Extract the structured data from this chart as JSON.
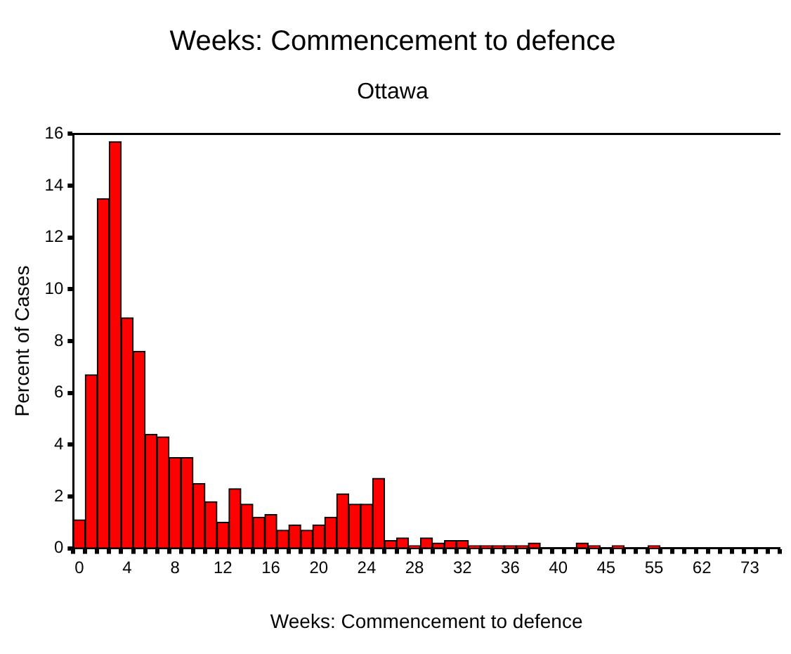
{
  "chart_data": {
    "type": "bar",
    "title": "Weeks: Commencement to defence",
    "subtitle": "Ottawa",
    "xlabel": "Weeks: Commencement to defence",
    "ylabel": "Percent of Cases",
    "categories": [
      "0",
      null,
      null,
      null,
      "4",
      null,
      null,
      null,
      "8",
      null,
      null,
      null,
      "12",
      null,
      null,
      null,
      "16",
      null,
      null,
      null,
      "20",
      null,
      null,
      null,
      "24",
      null,
      null,
      null,
      "28",
      null,
      null,
      null,
      "32",
      null,
      null,
      null,
      "36",
      null,
      null,
      null,
      "40",
      null,
      null,
      null,
      "45",
      null,
      null,
      null,
      "55",
      null,
      null,
      null,
      "62",
      null,
      null,
      null,
      "73",
      null,
      null
    ],
    "values": [
      1.1,
      6.7,
      13.5,
      15.7,
      8.9,
      7.6,
      4.4,
      4.3,
      3.5,
      3.5,
      2.5,
      1.8,
      1.0,
      2.3,
      1.7,
      1.2,
      1.3,
      0.7,
      0.9,
      0.7,
      0.9,
      1.2,
      2.1,
      1.7,
      1.7,
      2.7,
      0.3,
      0.4,
      0.1,
      0.4,
      0.2,
      0.3,
      0.3,
      0.1,
      0.1,
      0.1,
      0.1,
      0.1,
      0.2,
      0,
      0,
      0,
      0.2,
      0.1,
      0,
      0.1,
      0,
      0,
      0.1,
      0,
      0,
      0,
      0,
      0,
      0,
      0,
      0,
      0,
      0
    ],
    "color": "#ff0000",
    "ylim": [
      0,
      16
    ],
    "yticks": [
      0,
      2,
      4,
      6,
      8,
      10,
      12,
      14,
      16
    ],
    "grid": false,
    "legend": false
  }
}
